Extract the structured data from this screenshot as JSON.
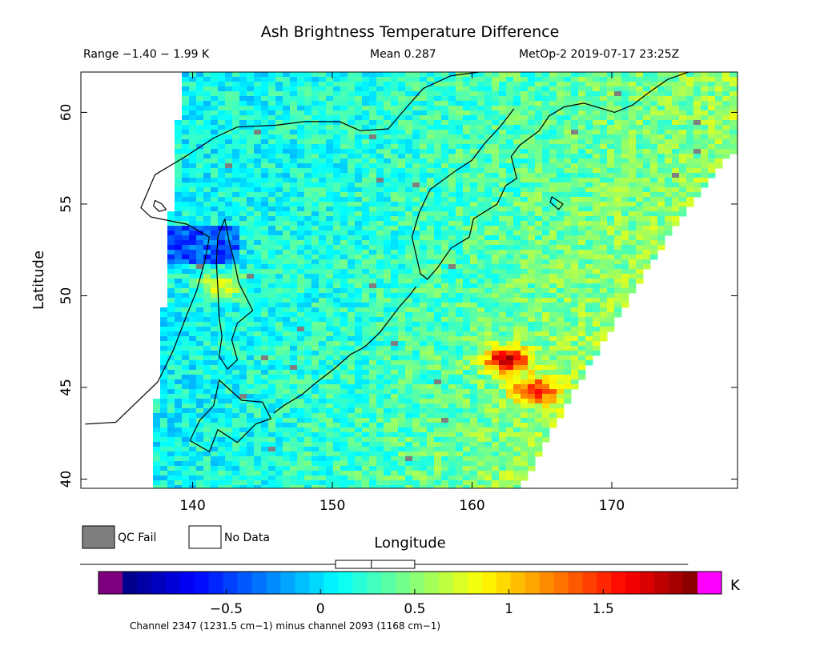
{
  "title": "Ash Brightness Temperature Difference",
  "header": {
    "range": "Range −1.40 − 1.99 K",
    "mean": "Mean 0.287",
    "source": "MetOp-2 2019-07-17 23:25Z"
  },
  "legend": {
    "qc_fail_label": "QC Fail",
    "qc_fail_color": "#7f7f7f",
    "no_data_label": "No Data",
    "no_data_color": "#ffffff"
  },
  "chart_data": {
    "type": "heatmap",
    "title": "Ash Brightness Temperature Difference",
    "xlabel": "Longitude",
    "ylabel": "Latitude",
    "xlim": [
      132,
      179
    ],
    "ylim": [
      39.5,
      62.2
    ],
    "x_ticks": [
      140,
      150,
      160,
      170
    ],
    "y_ticks": [
      40,
      45,
      50,
      55,
      60
    ],
    "value_range": [
      -1.4,
      1.99
    ],
    "mean": 0.287,
    "units": "K",
    "hotspots": [
      {
        "lon": 162.5,
        "lat": 46.5,
        "value": 1.8
      },
      {
        "lon": 164.5,
        "lat": 44.8,
        "value": 1.6
      },
      {
        "lon": 142.0,
        "lat": 50.5,
        "value": 1.1
      }
    ],
    "colorbar": {
      "min": -1.05,
      "max": 2.0,
      "ticks": [
        -0.5,
        0,
        0.5,
        1,
        1.5
      ],
      "tick_labels": [
        "−0.5",
        "0",
        "0.5",
        "1",
        "1.5"
      ],
      "units": "K",
      "underflow_color": "#7f007f",
      "overflow_color": "#ff00ff",
      "caption": "Channel 2347 (1231.5 cm−1) minus channel 2093 (1168 cm−1)"
    },
    "histogram": {
      "q1": 0.08,
      "median": 0.27,
      "q3": 0.5,
      "min": -1.05,
      "max": 1.95
    }
  }
}
